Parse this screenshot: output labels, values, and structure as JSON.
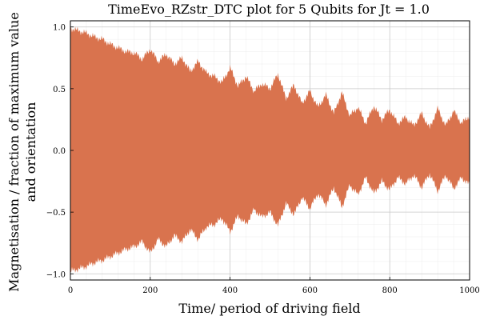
{
  "chart_data": {
    "type": "area",
    "title": "TimeEvo_RZstr_DTC plot for 5 Qubits for Jt = 1.0",
    "xlabel": "Time/ period of driving field",
    "ylabel_line1": "Magnetisation / fraction of maximum value",
    "ylabel_line2": "and orientation",
    "xlim": [
      0,
      1000
    ],
    "ylim": [
      -1.05,
      1.05
    ],
    "x_ticks": [
      0,
      200,
      400,
      600,
      800,
      1000
    ],
    "x_tick_labels": [
      "0",
      "200",
      "400",
      "600",
      "800",
      "1000"
    ],
    "y_ticks": [
      -1.0,
      -0.5,
      0.0,
      0.5,
      1.0
    ],
    "y_tick_labels": [
      "−1.0",
      "−0.5",
      "0.0",
      "0.5",
      "1.0"
    ],
    "grid": true,
    "legend": "none",
    "series": [
      {
        "color": "#d9734e",
        "envelope": {
          "x": [
            0,
            20,
            40,
            60,
            80,
            100,
            120,
            140,
            160,
            180,
            200,
            220,
            240,
            260,
            280,
            300,
            320,
            340,
            360,
            380,
            400,
            420,
            440,
            460,
            480,
            500,
            520,
            540,
            560,
            580,
            600,
            620,
            640,
            660,
            680,
            700,
            720,
            740,
            760,
            780,
            800,
            820,
            840,
            860,
            880,
            900,
            920,
            940,
            960,
            980,
            1000
          ],
          "upper": [
            0.99,
            0.97,
            0.95,
            0.92,
            0.9,
            0.86,
            0.83,
            0.8,
            0.79,
            0.74,
            0.82,
            0.72,
            0.78,
            0.7,
            0.75,
            0.64,
            0.72,
            0.63,
            0.6,
            0.55,
            0.67,
            0.52,
            0.6,
            0.48,
            0.54,
            0.5,
            0.62,
            0.42,
            0.53,
            0.38,
            0.48,
            0.35,
            0.45,
            0.3,
            0.47,
            0.28,
            0.35,
            0.22,
            0.36,
            0.25,
            0.33,
            0.22,
            0.27,
            0.2,
            0.3,
            0.18,
            0.34,
            0.2,
            0.32,
            0.22,
            0.28
          ],
          "lower": [
            -0.98,
            -0.96,
            -0.94,
            -0.91,
            -0.89,
            -0.86,
            -0.83,
            -0.8,
            -0.78,
            -0.74,
            -0.83,
            -0.72,
            -0.78,
            -0.69,
            -0.74,
            -0.64,
            -0.72,
            -0.62,
            -0.6,
            -0.55,
            -0.66,
            -0.53,
            -0.6,
            -0.48,
            -0.54,
            -0.5,
            -0.61,
            -0.43,
            -0.52,
            -0.38,
            -0.47,
            -0.35,
            -0.44,
            -0.3,
            -0.46,
            -0.28,
            -0.36,
            -0.22,
            -0.35,
            -0.25,
            -0.32,
            -0.22,
            -0.27,
            -0.2,
            -0.3,
            -0.19,
            -0.33,
            -0.2,
            -0.31,
            -0.22,
            -0.28
          ]
        }
      }
    ]
  }
}
